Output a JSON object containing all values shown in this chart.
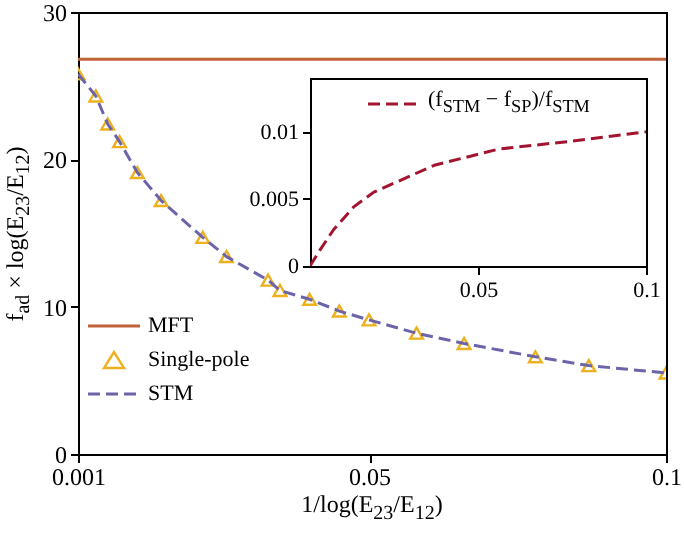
{
  "chart_data": [
    {
      "type": "line",
      "xlabel": "1/log(E$_{23}$/E$_{12}$)",
      "ylabel": "f$_{ad}$ × log(E$_{23}$/E$_{12}$)",
      "xlim": [
        0.001,
        0.1
      ],
      "xticks": [
        0.001,
        0.05,
        0.1
      ],
      "ylim": [
        0,
        30
      ],
      "yticks": [
        0,
        10,
        20,
        30
      ],
      "grid": false,
      "legend": "bottom left",
      "series": [
        {
          "name": "MFT",
          "line_style": "solid",
          "color": "#c0623a",
          "x": [
            0.001,
            0.1
          ],
          "values": [
            26.8,
            26.8
          ]
        },
        {
          "name": "Single-pole",
          "type": "scatter",
          "marker": "triangle",
          "color": "#edb120",
          "x": [
            0.001,
            0.004,
            0.006,
            0.008,
            0.011,
            0.015,
            0.022,
            0.026,
            0.033,
            0.035,
            0.04,
            0.045,
            0.05,
            0.058,
            0.066,
            0.078,
            0.087,
            0.1
          ],
          "values": [
            25.8,
            24.3,
            22.4,
            21.2,
            19.1,
            17.2,
            14.7,
            13.4,
            11.8,
            11.1,
            10.5,
            9.7,
            9.1,
            8.2,
            7.5,
            6.6,
            6.0,
            5.5
          ]
        },
        {
          "name": "STM",
          "line_style": "dashed",
          "color": "#6b64a8",
          "x": [
            0.001,
            0.004,
            0.006,
            0.008,
            0.011,
            0.015,
            0.022,
            0.026,
            0.033,
            0.035,
            0.04,
            0.045,
            0.05,
            0.058,
            0.066,
            0.078,
            0.087,
            0.1
          ],
          "values": [
            25.8,
            24.3,
            22.4,
            21.2,
            19.1,
            17.2,
            14.7,
            13.4,
            11.8,
            11.1,
            10.5,
            9.7,
            9.1,
            8.2,
            7.5,
            6.6,
            6.0,
            5.5
          ]
        }
      ]
    },
    {
      "type": "line",
      "xlim": [
        0,
        0.1
      ],
      "xticks": [
        0.05,
        0.1
      ],
      "ylim": [
        0,
        0.014
      ],
      "yticks": [
        0,
        0.005,
        0.01
      ],
      "grid": false,
      "legend": "top",
      "series": [
        {
          "name": "(f$_{STM}$ − f$_{SP}$)/f$_{STM}$",
          "line_style": "dashed",
          "color": "#a2142f",
          "x": [
            0,
            0.003,
            0.007,
            0.013,
            0.019,
            0.037,
            0.056,
            0.078,
            0.1
          ],
          "values": [
            0,
            0.0012,
            0.0027,
            0.0044,
            0.0055,
            0.0075,
            0.0087,
            0.0093,
            0.01
          ]
        }
      ]
    }
  ]
}
